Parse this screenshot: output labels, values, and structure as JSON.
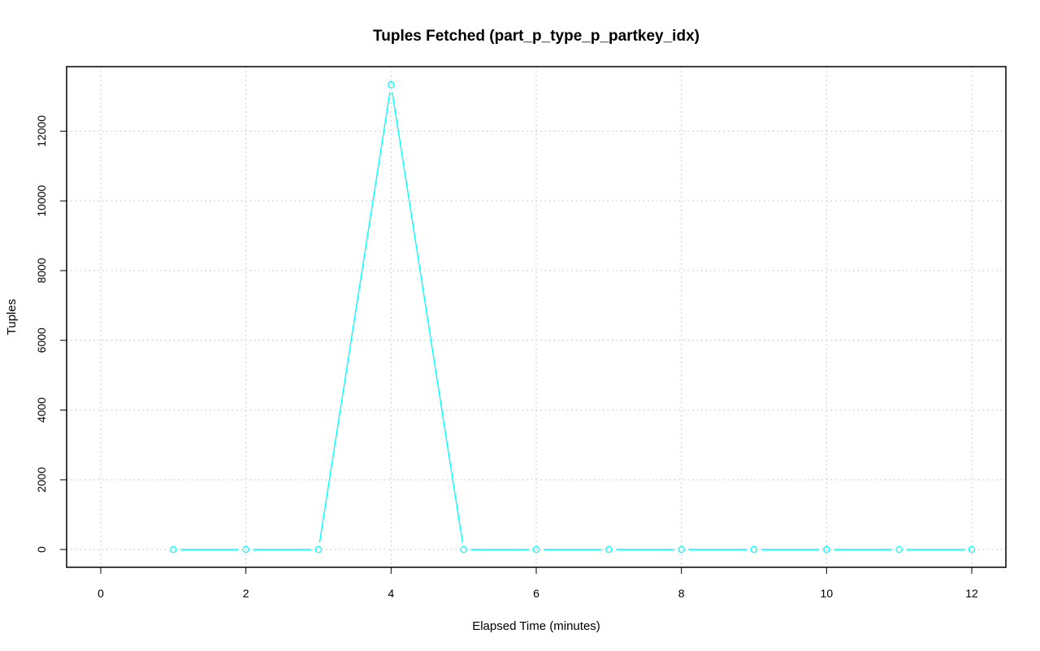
{
  "chart_data": {
    "type": "line",
    "title": "Tuples Fetched (part_p_type_p_partkey_idx)",
    "xlabel": "Elapsed Time (minutes)",
    "ylabel": "Tuples",
    "xlim": [
      -0.47,
      12.47
    ],
    "ylim": [
      -510,
      13850
    ],
    "x_ticks": [
      0,
      2,
      4,
      6,
      8,
      10,
      12
    ],
    "y_ticks": [
      0,
      2000,
      4000,
      6000,
      8000,
      10000,
      12000
    ],
    "x_tick_labels": [
      "0",
      "2",
      "4",
      "6",
      "8",
      "10",
      "12"
    ],
    "y_tick_labels": [
      "0",
      "2000",
      "4000",
      "6000",
      "8000",
      "10000",
      "12000"
    ],
    "grid": true,
    "series": [
      {
        "color": "#00ffff",
        "marker": "circle",
        "x": [
          1,
          2,
          3,
          4,
          5,
          6,
          7,
          8,
          9,
          10,
          11,
          12
        ],
        "y": [
          0,
          0,
          0,
          13330,
          0,
          0,
          0,
          0,
          0,
          0,
          0,
          0
        ]
      }
    ]
  }
}
